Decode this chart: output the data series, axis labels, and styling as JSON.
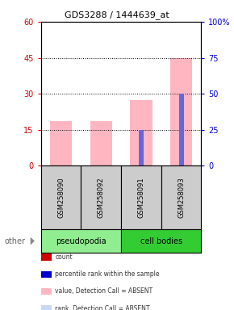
{
  "title": "GDS3288 / 1444639_at",
  "samples": [
    "GSM258090",
    "GSM258092",
    "GSM258091",
    "GSM258093"
  ],
  "groups": [
    "pseudopodia",
    "pseudopodia",
    "cell bodies",
    "cell bodies"
  ],
  "group_colors": {
    "pseudopodia": "#90EE90",
    "cell bodies": "#33CC33"
  },
  "pink_bars": [
    18.5,
    18.5,
    27.5,
    45.0
  ],
  "blue_bars": [
    0.3,
    0.3,
    25.0,
    50.0
  ],
  "ylim_left": [
    0,
    60
  ],
  "ylim_right": [
    0,
    100
  ],
  "yticks_left": [
    0,
    15,
    30,
    45,
    60
  ],
  "yticks_right": [
    0,
    25,
    50,
    75,
    100
  ],
  "left_tick_color": "#CC0000",
  "right_tick_color": "#0000CC",
  "legend_items": [
    {
      "color": "#CC0000",
      "label": "count"
    },
    {
      "color": "#0000CC",
      "label": "percentile rank within the sample"
    },
    {
      "color": "#FFB6C1",
      "label": "value, Detection Call = ABSENT"
    },
    {
      "color": "#C8D8F0",
      "label": "rank, Detection Call = ABSENT"
    }
  ],
  "background_color": "#ffffff",
  "sample_bg_color": "#cccccc",
  "sample_border_color": "#000000",
  "pink_bar_width": 0.55,
  "blue_bar_width": 0.12
}
